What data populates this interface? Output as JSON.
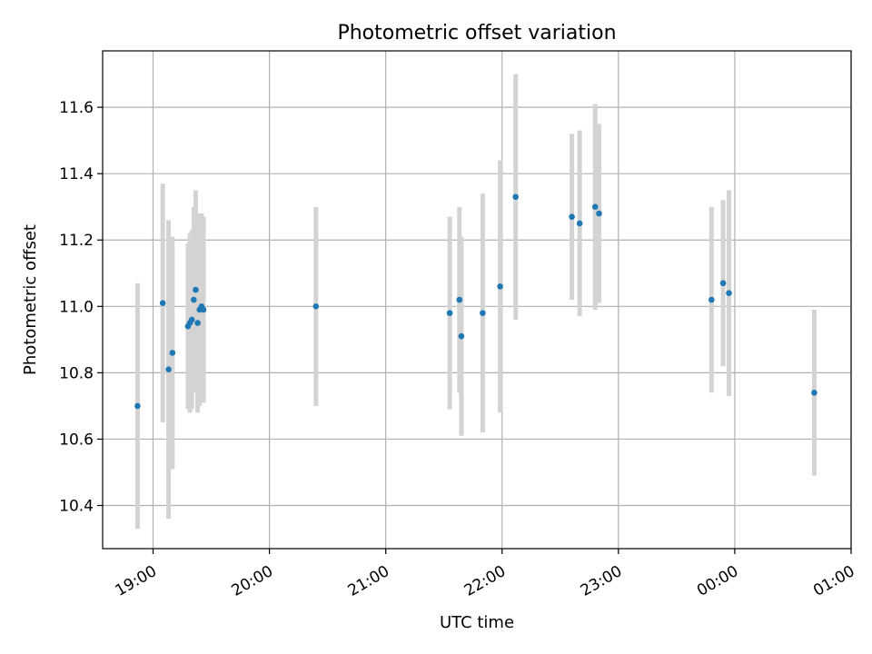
{
  "chart_data": {
    "type": "scatter",
    "title": "Photometric offset variation",
    "xlabel": "UTC time",
    "ylabel": "Photometric offset",
    "x_ticks": [
      "19:00",
      "20:00",
      "21:00",
      "22:00",
      "23:00",
      "00:00",
      "01:00"
    ],
    "y_ticks": [
      "10.4",
      "10.6",
      "10.8",
      "11.0",
      "11.2",
      "11.4",
      "11.6"
    ],
    "xlim": [
      "18:34",
      "01:00"
    ],
    "ylim": [
      10.27,
      11.77
    ],
    "grid": true,
    "colors": {
      "point": "#1f77b4",
      "error_bar": "#d3d3d3",
      "grid": "#b0b0b0",
      "axis": "#000000"
    },
    "series": [
      {
        "points": [
          {
            "x": "18:52",
            "y": 10.7,
            "err": 0.37
          },
          {
            "x": "19:05",
            "y": 11.01,
            "err": 0.36
          },
          {
            "x": "19:08",
            "y": 10.81,
            "err": 0.45
          },
          {
            "x": "19:10",
            "y": 10.86,
            "err": 0.35
          },
          {
            "x": "19:18",
            "y": 10.94,
            "err": 0.25
          },
          {
            "x": "19:19",
            "y": 10.95,
            "err": 0.27
          },
          {
            "x": "19:20",
            "y": 10.96,
            "err": 0.27
          },
          {
            "x": "19:21",
            "y": 11.02,
            "err": 0.28
          },
          {
            "x": "19:22",
            "y": 11.05,
            "err": 0.3
          },
          {
            "x": "19:23",
            "y": 10.95,
            "err": 0.27
          },
          {
            "x": "19:24",
            "y": 10.99,
            "err": 0.29
          },
          {
            "x": "19:25",
            "y": 11.0,
            "err": 0.28
          },
          {
            "x": "19:26",
            "y": 10.99,
            "err": 0.28
          },
          {
            "x": "20:24",
            "y": 11.0,
            "err": 0.3
          },
          {
            "x": "21:33",
            "y": 10.98,
            "err": 0.29
          },
          {
            "x": "21:38",
            "y": 11.02,
            "err": 0.28
          },
          {
            "x": "21:39",
            "y": 10.91,
            "err": 0.3
          },
          {
            "x": "21:50",
            "y": 10.98,
            "err": 0.36
          },
          {
            "x": "21:59",
            "y": 11.06,
            "err": 0.38
          },
          {
            "x": "22:07",
            "y": 11.33,
            "err": 0.37
          },
          {
            "x": "22:36",
            "y": 11.27,
            "err": 0.25
          },
          {
            "x": "22:40",
            "y": 11.25,
            "err": 0.28
          },
          {
            "x": "22:48",
            "y": 11.3,
            "err": 0.31
          },
          {
            "x": "22:50",
            "y": 11.28,
            "err": 0.27
          },
          {
            "x": "23:48",
            "y": 11.02,
            "err": 0.28
          },
          {
            "x": "23:54",
            "y": 11.07,
            "err": 0.25
          },
          {
            "x": "23:57",
            "y": 11.04,
            "err": 0.31
          },
          {
            "x": "00:41",
            "y": 10.74,
            "err": 0.25
          }
        ]
      }
    ]
  }
}
